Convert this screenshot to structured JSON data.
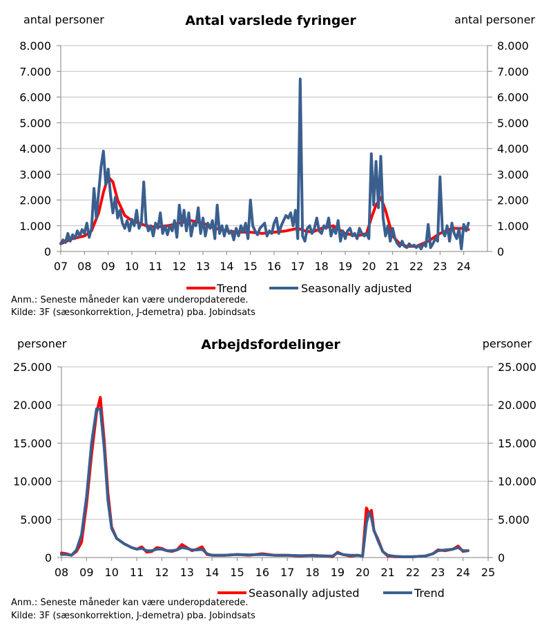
{
  "chart_data": [
    {
      "type": "line",
      "title": "Antal varslede fyringer",
      "ylabel_left": "antal personer",
      "ylabel_right": "antal personer",
      "ylim": [
        0,
        8000
      ],
      "xlim": [
        2007,
        2025
      ],
      "yticks": [
        "0",
        "1.000",
        "2.000",
        "3.000",
        "4.000",
        "5.000",
        "6.000",
        "7.000",
        "8.000"
      ],
      "yticks_values": [
        0,
        1000,
        2000,
        3000,
        4000,
        5000,
        6000,
        7000,
        8000
      ],
      "xticks": [
        "07",
        "08",
        "09",
        "10",
        "11",
        "12",
        "13",
        "14",
        "15",
        "16",
        "17",
        "18",
        "19",
        "20",
        "21",
        "22",
        "23",
        "24"
      ],
      "legend": [
        "Trend",
        "Seasonally adjusted"
      ],
      "legend_placement": "bottom",
      "notes": [
        "Anm.: Seneste måneder  kan være underopdaterede.",
        "Kilde: 3F (sæsonkorrektion, J-demetra) pba. Jobindsats"
      ],
      "series": [
        {
          "name": "Trend",
          "color": "#ff0000",
          "x": [
            2007.0,
            2007.5,
            2008.0,
            2008.3,
            2008.6,
            2008.8,
            2009.0,
            2009.2,
            2009.4,
            2009.7,
            2010.0,
            2010.3,
            2010.6,
            2011.0,
            2011.5,
            2012.0,
            2012.5,
            2013.0,
            2013.5,
            2014.0,
            2014.5,
            2015.0,
            2015.5,
            2016.0,
            2016.5,
            2017.0,
            2017.3,
            2017.6,
            2018.0,
            2018.5,
            2019.0,
            2019.5,
            2019.9,
            2020.1,
            2020.3,
            2020.5,
            2020.7,
            2021.0,
            2021.3,
            2021.6,
            2022.0,
            2022.5,
            2023.0,
            2023.5,
            2024.0,
            2024.2
          ],
          "y": [
            300,
            500,
            600,
            800,
            1500,
            2300,
            2900,
            2700,
            2000,
            1400,
            1200,
            1100,
            1000,
            950,
            1000,
            1100,
            1200,
            1100,
            900,
            800,
            750,
            750,
            700,
            750,
            800,
            900,
            800,
            750,
            900,
            1000,
            700,
            600,
            700,
            1300,
            1800,
            2100,
            1600,
            600,
            300,
            200,
            200,
            400,
            700,
            900,
            900,
            850
          ]
        },
        {
          "name": "Seasonally adjusted",
          "color": "#3a5f8f",
          "x": [
            2007.0,
            2007.1,
            2007.2,
            2007.3,
            2007.4,
            2007.5,
            2007.6,
            2007.7,
            2007.8,
            2007.9,
            2008.0,
            2008.1,
            2008.2,
            2008.3,
            2008.4,
            2008.5,
            2008.6,
            2008.7,
            2008.8,
            2008.9,
            2009.0,
            2009.1,
            2009.2,
            2009.3,
            2009.4,
            2009.5,
            2009.6,
            2009.7,
            2009.8,
            2009.9,
            2010.0,
            2010.1,
            2010.2,
            2010.3,
            2010.4,
            2010.5,
            2010.6,
            2010.7,
            2010.8,
            2010.9,
            2011.0,
            2011.1,
            2011.2,
            2011.3,
            2011.4,
            2011.5,
            2011.6,
            2011.7,
            2011.8,
            2011.9,
            2012.0,
            2012.1,
            2012.2,
            2012.3,
            2012.4,
            2012.5,
            2012.6,
            2012.7,
            2012.8,
            2012.9,
            2013.0,
            2013.1,
            2013.2,
            2013.3,
            2013.4,
            2013.5,
            2013.6,
            2013.7,
            2013.8,
            2013.9,
            2014.0,
            2014.1,
            2014.2,
            2014.3,
            2014.4,
            2014.5,
            2014.6,
            2014.7,
            2014.8,
            2014.9,
            2015.0,
            2015.1,
            2015.2,
            2015.3,
            2015.4,
            2015.5,
            2015.6,
            2015.7,
            2015.8,
            2015.9,
            2016.0,
            2016.1,
            2016.2,
            2016.3,
            2016.4,
            2016.5,
            2016.6,
            2016.7,
            2016.8,
            2016.9,
            2017.0,
            2017.1,
            2017.2,
            2017.3,
            2017.4,
            2017.5,
            2017.6,
            2017.7,
            2017.8,
            2017.9,
            2018.0,
            2018.1,
            2018.2,
            2018.3,
            2018.4,
            2018.5,
            2018.6,
            2018.7,
            2018.8,
            2018.9,
            2019.0,
            2019.1,
            2019.2,
            2019.3,
            2019.4,
            2019.5,
            2019.6,
            2019.7,
            2019.8,
            2019.9,
            2020.0,
            2020.1,
            2020.2,
            2020.3,
            2020.4,
            2020.5,
            2020.6,
            2020.7,
            2020.8,
            2020.9,
            2021.0,
            2021.1,
            2021.2,
            2021.3,
            2021.4,
            2021.5,
            2021.6,
            2021.7,
            2021.8,
            2021.9,
            2022.0,
            2022.1,
            2022.2,
            2022.3,
            2022.4,
            2022.5,
            2022.6,
            2022.7,
            2022.8,
            2022.9,
            2023.0,
            2023.1,
            2023.2,
            2023.3,
            2023.4,
            2023.5,
            2023.6,
            2023.7,
            2023.8,
            2023.9,
            2024.0,
            2024.1,
            2024.2
          ],
          "y": [
            300,
            450,
            350,
            700,
            400,
            650,
            500,
            800,
            600,
            850,
            700,
            1100,
            550,
            900,
            2450,
            1300,
            2300,
            3300,
            3900,
            2600,
            3200,
            2200,
            1500,
            2100,
            1300,
            1600,
            1100,
            900,
            1200,
            800,
            1250,
            1000,
            1600,
            900,
            1100,
            2700,
            1100,
            800,
            1000,
            600,
            1100,
            900,
            1500,
            700,
            1000,
            650,
            1000,
            800,
            1200,
            550,
            1800,
            1000,
            1600,
            800,
            1500,
            600,
            1100,
            1000,
            1700,
            700,
            1300,
            600,
            1100,
            900,
            1200,
            500,
            1800,
            700,
            1000,
            600,
            1000,
            700,
            800,
            450,
            900,
            600,
            1000,
            750,
            1100,
            500,
            2000,
            1000,
            800,
            650,
            900,
            1000,
            1100,
            600,
            800,
            700,
            1100,
            1300,
            700,
            1000,
            1200,
            1400,
            1300,
            1500,
            1000,
            1600,
            500,
            6700,
            600,
            400,
            900,
            1000,
            700,
            900,
            1300,
            800,
            700,
            1000,
            900,
            1300,
            600,
            900,
            700,
            1200,
            400,
            800,
            500,
            800,
            900,
            600,
            700,
            500,
            900,
            700,
            600,
            700,
            500,
            3800,
            1800,
            3500,
            1700,
            3700,
            1300,
            600,
            1000,
            400,
            900,
            500,
            300,
            200,
            400,
            200,
            150,
            300,
            200,
            250,
            150,
            250,
            100,
            300,
            200,
            1050,
            150,
            300,
            500,
            400,
            2900,
            800,
            600,
            1000,
            400,
            1100,
            700,
            500,
            900,
            100,
            1050,
            800,
            1100
          ]
        }
      ]
    },
    {
      "type": "line",
      "title": "Arbejdsfordelinger",
      "ylabel_left": "personer",
      "ylabel_right": "personer",
      "ylim": [
        0,
        25000
      ],
      "xlim": [
        2008,
        2025
      ],
      "yticks": [
        "0",
        "5.000",
        "10.000",
        "15.000",
        "20.000",
        "25.000"
      ],
      "yticks_values": [
        0,
        5000,
        10000,
        15000,
        20000,
        25000
      ],
      "xticks": [
        "08",
        "09",
        "10",
        "11",
        "12",
        "13",
        "14",
        "15",
        "16",
        "17",
        "18",
        "19",
        "20",
        "21",
        "22",
        "23",
        "24",
        "25"
      ],
      "legend": [
        "Seasonally adjusted",
        "Trend"
      ],
      "legend_placement": "bottom",
      "notes": [
        "Anm.: Seneste måneder  kan være underopdaterede.",
        "Kilde: 3F (sæsonkorrektion, J-demetra) pba. Jobindsats"
      ],
      "series": [
        {
          "name": "Seasonally adjusted",
          "color": "#ff0000",
          "x": [
            2008.0,
            2008.2,
            2008.4,
            2008.6,
            2008.8,
            2009.0,
            2009.2,
            2009.4,
            2009.55,
            2009.7,
            2009.85,
            2010.0,
            2010.2,
            2010.5,
            2010.8,
            2011.0,
            2011.2,
            2011.4,
            2011.6,
            2011.8,
            2012.0,
            2012.2,
            2012.4,
            2012.6,
            2012.8,
            2013.0,
            2013.2,
            2013.4,
            2013.6,
            2013.8,
            2014.0,
            2014.5,
            2015.0,
            2015.5,
            2016.0,
            2016.5,
            2017.0,
            2017.5,
            2018.0,
            2018.5,
            2018.8,
            2019.0,
            2019.2,
            2019.5,
            2019.8,
            2020.0,
            2020.15,
            2020.25,
            2020.35,
            2020.45,
            2020.6,
            2020.8,
            2021.0,
            2021.3,
            2021.6,
            2022.0,
            2022.5,
            2022.8,
            2023.0,
            2023.3,
            2023.6,
            2023.8,
            2024.0,
            2024.2
          ],
          "y": [
            600,
            500,
            300,
            800,
            2000,
            7000,
            13500,
            19000,
            21000,
            15500,
            8500,
            4000,
            2500,
            1800,
            1300,
            1100,
            1400,
            700,
            800,
            1300,
            1200,
            900,
            800,
            1000,
            1700,
            1300,
            900,
            1100,
            1400,
            400,
            300,
            300,
            400,
            300,
            500,
            300,
            300,
            200,
            300,
            200,
            100,
            700,
            400,
            200,
            300,
            200,
            6500,
            5800,
            6200,
            3500,
            2500,
            800,
            200,
            100,
            100,
            100,
            200,
            500,
            1000,
            900,
            1100,
            1500,
            800,
            900
          ]
        },
        {
          "name": "Trend",
          "color": "#3a5f8f",
          "x": [
            2008.0,
            2008.2,
            2008.4,
            2008.6,
            2008.8,
            2009.0,
            2009.2,
            2009.4,
            2009.55,
            2009.7,
            2009.85,
            2010.0,
            2010.2,
            2010.5,
            2010.8,
            2011.0,
            2011.2,
            2011.4,
            2011.6,
            2011.8,
            2012.0,
            2012.2,
            2012.4,
            2012.6,
            2012.8,
            2013.0,
            2013.2,
            2013.4,
            2013.6,
            2013.8,
            2014.0,
            2014.5,
            2015.0,
            2015.5,
            2016.0,
            2016.5,
            2017.0,
            2017.5,
            2018.0,
            2018.5,
            2018.8,
            2019.0,
            2019.2,
            2019.5,
            2019.8,
            2020.0,
            2020.15,
            2020.25,
            2020.35,
            2020.45,
            2020.6,
            2020.8,
            2021.0,
            2021.3,
            2021.6,
            2022.0,
            2022.5,
            2022.8,
            2023.0,
            2023.3,
            2023.6,
            2023.8,
            2024.0,
            2024.2
          ],
          "y": [
            400,
            400,
            300,
            1000,
            3000,
            8000,
            15000,
            19500,
            19500,
            14500,
            7500,
            3800,
            2500,
            1800,
            1300,
            1100,
            1200,
            900,
            900,
            1100,
            1100,
            900,
            900,
            1000,
            1300,
            1200,
            1000,
            1000,
            1100,
            500,
            300,
            300,
            400,
            350,
            400,
            300,
            300,
            250,
            250,
            200,
            200,
            600,
            400,
            300,
            300,
            200,
            4500,
            5900,
            5200,
            3600,
            2300,
            800,
            300,
            150,
            100,
            100,
            200,
            500,
            900,
            1000,
            1100,
            1300,
            900,
            900
          ]
        }
      ]
    }
  ]
}
